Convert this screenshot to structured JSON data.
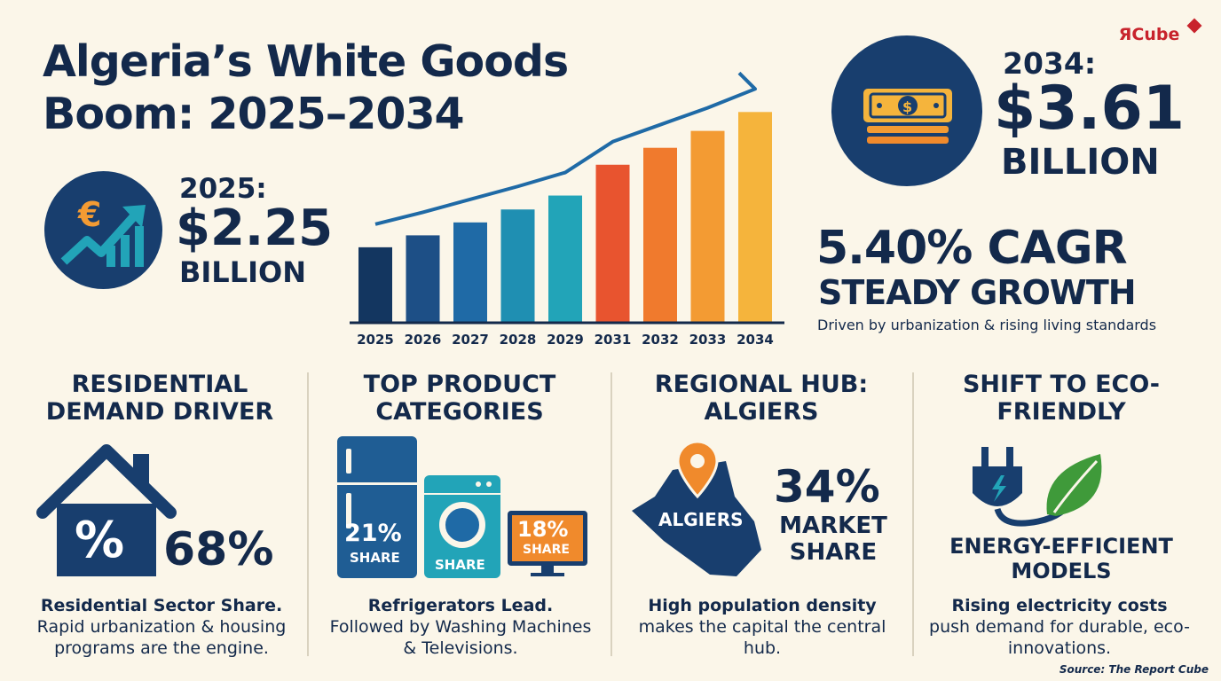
{
  "title": "Algeria’s White Goods Boom: 2025–2034",
  "logo": {
    "symbol": "Я",
    "text": "Cube"
  },
  "stat_2025": {
    "label": "2025:",
    "value": "$2.25",
    "unit": "BILLION",
    "icon": "euro-growth-icon"
  },
  "stat_2034": {
    "label": "2034:",
    "value": "$3.61",
    "unit": "BILLION",
    "icon": "money-stack-icon"
  },
  "cagr": {
    "headline": "5.40% CAGR",
    "sub": "STEADY GROWTH",
    "note": "Driven by urbanization & rising living standards"
  },
  "chart_data": {
    "type": "bar",
    "categories": [
      "2025",
      "2026",
      "2027",
      "2028",
      "2029",
      "2031",
      "2032",
      "2033",
      "2034"
    ],
    "values": [
      2.25,
      2.37,
      2.5,
      2.63,
      2.77,
      3.08,
      3.25,
      3.42,
      3.61
    ],
    "colors": [
      "#133660",
      "#1d4f86",
      "#1f6aa6",
      "#1f8fb2",
      "#22a4b8",
      "#e8542f",
      "#f07a2d",
      "#f39b33",
      "#f5b43c"
    ],
    "ylim": [
      1.5,
      3.8
    ],
    "grid": false,
    "trend_line": true
  },
  "sections": [
    {
      "title": "RESIDENTIAL DEMAND DRIVER",
      "stat": "68%",
      "bold": "Residential Sector Share.",
      "text": "Rapid urbanization & housing programs are the engine.",
      "icon": "house-percent-icon"
    },
    {
      "title": "TOP PRODUCT CATEGORIES",
      "fridge": "21%",
      "fridge_label": "SHARE",
      "washer_label": "SHARE",
      "tv": "18%",
      "tv_label": "SHARE",
      "bold": "Refrigerators Lead.",
      "text": "Followed by Washing Machines & Televisions.",
      "icon": "appliances-icon"
    },
    {
      "title": "REGIONAL HUB: ALGIERS",
      "map_label": "ALGIERS",
      "stat": "34%",
      "stat_label": "MARKET SHARE",
      "bold": "High population density",
      "text": "makes the capital the central hub.",
      "icon": "map-pin-icon"
    },
    {
      "title": "SHIFT TO ECO-FRIENDLY",
      "subtitle": "ENERGY-EFFICIENT MODELS",
      "bold": "Rising electricity costs",
      "text": "push demand for durable, eco-innovations.",
      "icon": "plug-leaf-icon"
    }
  ],
  "source": "Source: The Report Cube",
  "colors": {
    "navy": "#13294b",
    "circle": "#183e6e",
    "orange": "#f08a2c",
    "teal": "#22a4b8",
    "green": "#3f9a3a"
  }
}
